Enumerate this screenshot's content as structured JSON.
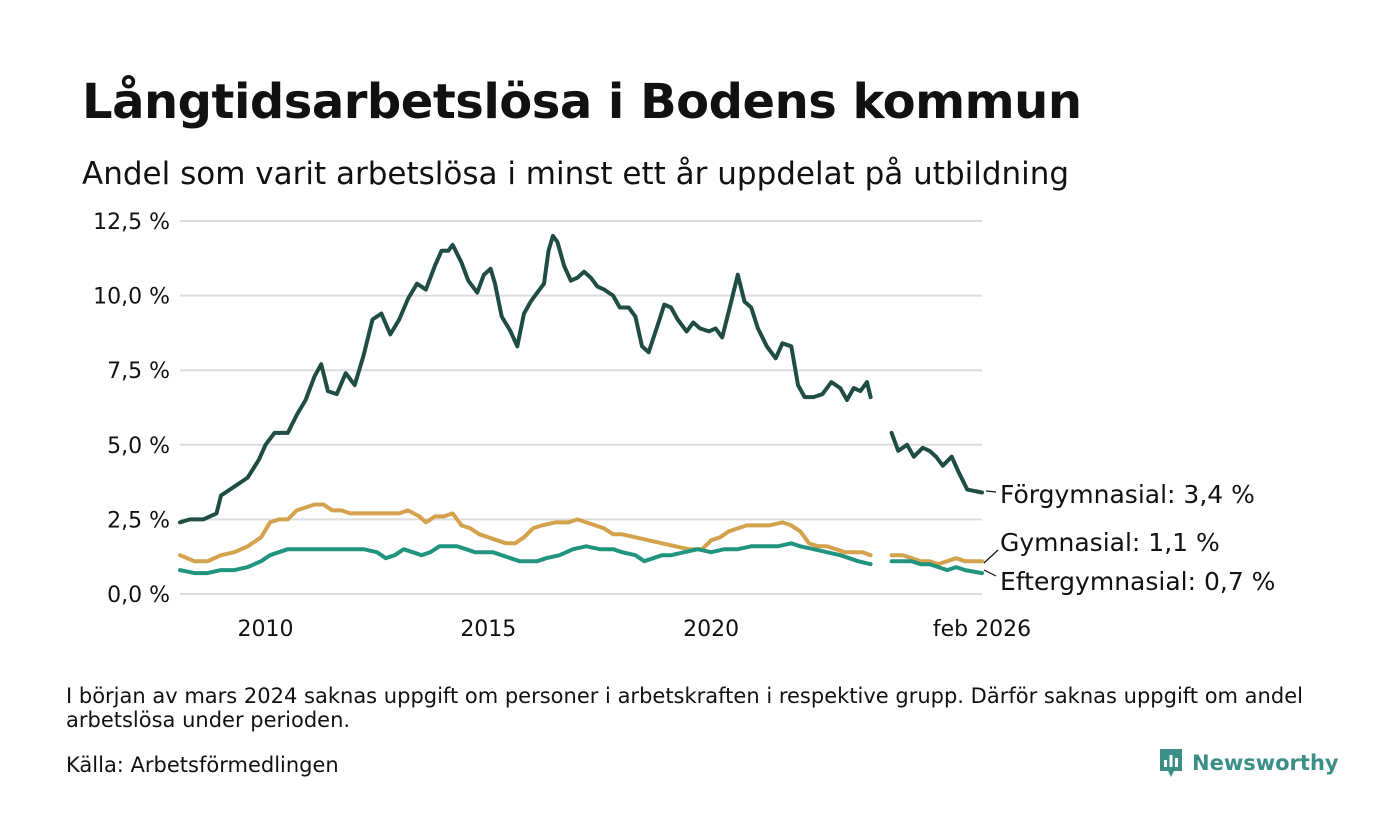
{
  "title": "Långtidsarbetslösa i Bodens kommun",
  "subtitle": "Andel som varit arbetslösa i minst ett år uppdelat på utbildning",
  "note": "I början av mars 2024 saknas uppgift om personer i arbetskraften i respektive grupp. Därför saknas uppgift om andel arbetslösa under perioden.",
  "source": "Källa: Arbetsförmedlingen",
  "brand": "Newsworthy",
  "colors": {
    "forgymnasial": "#1f4d44",
    "gymnasial": "#d4a24c",
    "eftergymnasial": "#21947f",
    "grid": "#dddddd",
    "brand": "#3b8f86"
  },
  "chart_data": {
    "type": "line",
    "title": "Långtidsarbetslösa i Bodens kommun",
    "subtitle": "Andel som varit arbetslösa i minst ett år uppdelat på utbildning",
    "xlabel": "",
    "ylabel": "",
    "ylim": [
      0,
      12.5
    ],
    "xlim": [
      2008.08,
      2026.08
    ],
    "grid": true,
    "y_ticks": [
      {
        "value": 0,
        "label": "0,0 %"
      },
      {
        "value": 2.5,
        "label": "2,5 %"
      },
      {
        "value": 5,
        "label": "5,0 %"
      },
      {
        "value": 7.5,
        "label": "7,5 %"
      },
      {
        "value": 10,
        "label": "10,0 %"
      },
      {
        "value": 12.5,
        "label": "12,5 %"
      }
    ],
    "x_ticks": [
      {
        "value": 2010,
        "label": "2010"
      },
      {
        "value": 2015,
        "label": "2015"
      },
      {
        "value": 2020,
        "label": "2020"
      },
      {
        "value": 2026.08,
        "label": "feb 2026"
      }
    ],
    "gap": [
      2023.65,
      2024.05
    ],
    "series": [
      {
        "name": "Förgymnasial",
        "end_label": "Förgymnasial: 3,4 %",
        "color_key": "forgymnasial",
        "points": [
          [
            2008.08,
            2.4
          ],
          [
            2008.3,
            2.5
          ],
          [
            2008.6,
            2.5
          ],
          [
            2008.9,
            2.7
          ],
          [
            2009.0,
            3.3
          ],
          [
            2009.3,
            3.6
          ],
          [
            2009.6,
            3.9
          ],
          [
            2009.85,
            4.5
          ],
          [
            2010.0,
            5.0
          ],
          [
            2010.2,
            5.4
          ],
          [
            2010.5,
            5.4
          ],
          [
            2010.7,
            6.0
          ],
          [
            2010.9,
            6.5
          ],
          [
            2011.1,
            7.3
          ],
          [
            2011.25,
            7.7
          ],
          [
            2011.4,
            6.8
          ],
          [
            2011.6,
            6.7
          ],
          [
            2011.8,
            7.4
          ],
          [
            2012.0,
            7.0
          ],
          [
            2012.2,
            8.0
          ],
          [
            2012.4,
            9.2
          ],
          [
            2012.6,
            9.4
          ],
          [
            2012.8,
            8.7
          ],
          [
            2013.0,
            9.2
          ],
          [
            2013.2,
            9.9
          ],
          [
            2013.4,
            10.4
          ],
          [
            2013.6,
            10.2
          ],
          [
            2013.8,
            11.0
          ],
          [
            2013.95,
            11.5
          ],
          [
            2014.1,
            11.5
          ],
          [
            2014.2,
            11.7
          ],
          [
            2014.4,
            11.1
          ],
          [
            2014.55,
            10.5
          ],
          [
            2014.75,
            10.1
          ],
          [
            2014.9,
            10.7
          ],
          [
            2015.05,
            10.9
          ],
          [
            2015.15,
            10.4
          ],
          [
            2015.3,
            9.3
          ],
          [
            2015.5,
            8.8
          ],
          [
            2015.65,
            8.3
          ],
          [
            2015.8,
            9.4
          ],
          [
            2015.95,
            9.8
          ],
          [
            2016.1,
            10.1
          ],
          [
            2016.25,
            10.4
          ],
          [
            2016.35,
            11.5
          ],
          [
            2016.45,
            12.0
          ],
          [
            2016.55,
            11.8
          ],
          [
            2016.7,
            11.0
          ],
          [
            2016.85,
            10.5
          ],
          [
            2017.0,
            10.6
          ],
          [
            2017.15,
            10.8
          ],
          [
            2017.3,
            10.6
          ],
          [
            2017.45,
            10.3
          ],
          [
            2017.6,
            10.2
          ],
          [
            2017.8,
            10.0
          ],
          [
            2017.95,
            9.6
          ],
          [
            2018.15,
            9.6
          ],
          [
            2018.3,
            9.3
          ],
          [
            2018.45,
            8.3
          ],
          [
            2018.6,
            8.1
          ],
          [
            2018.8,
            9.0
          ],
          [
            2018.95,
            9.7
          ],
          [
            2019.1,
            9.6
          ],
          [
            2019.25,
            9.2
          ],
          [
            2019.45,
            8.8
          ],
          [
            2019.6,
            9.1
          ],
          [
            2019.75,
            8.9
          ],
          [
            2019.95,
            8.8
          ],
          [
            2020.1,
            8.9
          ],
          [
            2020.25,
            8.6
          ],
          [
            2020.45,
            9.8
          ],
          [
            2020.6,
            10.7
          ],
          [
            2020.75,
            9.8
          ],
          [
            2020.9,
            9.6
          ],
          [
            2021.05,
            8.9
          ],
          [
            2021.25,
            8.3
          ],
          [
            2021.45,
            7.9
          ],
          [
            2021.6,
            8.4
          ],
          [
            2021.8,
            8.3
          ],
          [
            2021.95,
            7.0
          ],
          [
            2022.1,
            6.6
          ],
          [
            2022.3,
            6.6
          ],
          [
            2022.5,
            6.7
          ],
          [
            2022.7,
            7.1
          ],
          [
            2022.9,
            6.9
          ],
          [
            2023.05,
            6.5
          ],
          [
            2023.2,
            6.9
          ],
          [
            2023.35,
            6.8
          ],
          [
            2023.5,
            7.1
          ],
          [
            2023.58,
            6.6
          ],
          [
            2024.05,
            5.4
          ],
          [
            2024.2,
            4.8
          ],
          [
            2024.4,
            5.0
          ],
          [
            2024.55,
            4.6
          ],
          [
            2024.75,
            4.9
          ],
          [
            2024.9,
            4.8
          ],
          [
            2025.05,
            4.6
          ],
          [
            2025.2,
            4.3
          ],
          [
            2025.4,
            4.6
          ],
          [
            2025.55,
            4.1
          ],
          [
            2025.75,
            3.5
          ],
          [
            2026.08,
            3.4
          ]
        ]
      },
      {
        "name": "Gymnasial",
        "end_label": "Gymnasial: 1,1 %",
        "color_key": "gymnasial",
        "points": [
          [
            2008.08,
            1.3
          ],
          [
            2008.4,
            1.1
          ],
          [
            2008.7,
            1.1
          ],
          [
            2009.0,
            1.3
          ],
          [
            2009.3,
            1.4
          ],
          [
            2009.6,
            1.6
          ],
          [
            2009.9,
            1.9
          ],
          [
            2010.1,
            2.4
          ],
          [
            2010.3,
            2.5
          ],
          [
            2010.5,
            2.5
          ],
          [
            2010.7,
            2.8
          ],
          [
            2010.9,
            2.9
          ],
          [
            2011.1,
            3.0
          ],
          [
            2011.3,
            3.0
          ],
          [
            2011.5,
            2.8
          ],
          [
            2011.7,
            2.8
          ],
          [
            2011.9,
            2.7
          ],
          [
            2012.1,
            2.7
          ],
          [
            2012.4,
            2.7
          ],
          [
            2012.7,
            2.7
          ],
          [
            2013.0,
            2.7
          ],
          [
            2013.2,
            2.8
          ],
          [
            2013.45,
            2.6
          ],
          [
            2013.6,
            2.4
          ],
          [
            2013.8,
            2.6
          ],
          [
            2014.0,
            2.6
          ],
          [
            2014.2,
            2.7
          ],
          [
            2014.4,
            2.3
          ],
          [
            2014.6,
            2.2
          ],
          [
            2014.8,
            2.0
          ],
          [
            2015.0,
            1.9
          ],
          [
            2015.2,
            1.8
          ],
          [
            2015.4,
            1.7
          ],
          [
            2015.6,
            1.7
          ],
          [
            2015.8,
            1.9
          ],
          [
            2016.0,
            2.2
          ],
          [
            2016.2,
            2.3
          ],
          [
            2016.5,
            2.4
          ],
          [
            2016.8,
            2.4
          ],
          [
            2017.0,
            2.5
          ],
          [
            2017.2,
            2.4
          ],
          [
            2017.4,
            2.3
          ],
          [
            2017.6,
            2.2
          ],
          [
            2017.8,
            2.0
          ],
          [
            2018.0,
            2.0
          ],
          [
            2018.3,
            1.9
          ],
          [
            2018.6,
            1.8
          ],
          [
            2018.9,
            1.7
          ],
          [
            2019.2,
            1.6
          ],
          [
            2019.5,
            1.5
          ],
          [
            2019.8,
            1.5
          ],
          [
            2020.0,
            1.8
          ],
          [
            2020.2,
            1.9
          ],
          [
            2020.4,
            2.1
          ],
          [
            2020.6,
            2.2
          ],
          [
            2020.8,
            2.3
          ],
          [
            2021.0,
            2.3
          ],
          [
            2021.3,
            2.3
          ],
          [
            2021.6,
            2.4
          ],
          [
            2021.8,
            2.3
          ],
          [
            2022.0,
            2.1
          ],
          [
            2022.2,
            1.7
          ],
          [
            2022.4,
            1.6
          ],
          [
            2022.6,
            1.6
          ],
          [
            2022.8,
            1.5
          ],
          [
            2023.0,
            1.4
          ],
          [
            2023.2,
            1.4
          ],
          [
            2023.4,
            1.4
          ],
          [
            2023.58,
            1.3
          ],
          [
            2024.05,
            1.3
          ],
          [
            2024.3,
            1.3
          ],
          [
            2024.5,
            1.2
          ],
          [
            2024.7,
            1.1
          ],
          [
            2024.9,
            1.1
          ],
          [
            2025.1,
            1.0
          ],
          [
            2025.3,
            1.1
          ],
          [
            2025.5,
            1.2
          ],
          [
            2025.7,
            1.1
          ],
          [
            2026.08,
            1.1
          ]
        ]
      },
      {
        "name": "Eftergymnasial",
        "end_label": "Eftergymnasial: 0,7 %",
        "color_key": "eftergymnasial",
        "points": [
          [
            2008.08,
            0.8
          ],
          [
            2008.4,
            0.7
          ],
          [
            2008.7,
            0.7
          ],
          [
            2009.0,
            0.8
          ],
          [
            2009.3,
            0.8
          ],
          [
            2009.6,
            0.9
          ],
          [
            2009.9,
            1.1
          ],
          [
            2010.1,
            1.3
          ],
          [
            2010.3,
            1.4
          ],
          [
            2010.5,
            1.5
          ],
          [
            2010.8,
            1.5
          ],
          [
            2011.0,
            1.5
          ],
          [
            2011.3,
            1.5
          ],
          [
            2011.6,
            1.5
          ],
          [
            2011.9,
            1.5
          ],
          [
            2012.2,
            1.5
          ],
          [
            2012.5,
            1.4
          ],
          [
            2012.7,
            1.2
          ],
          [
            2012.9,
            1.3
          ],
          [
            2013.1,
            1.5
          ],
          [
            2013.3,
            1.4
          ],
          [
            2013.5,
            1.3
          ],
          [
            2013.7,
            1.4
          ],
          [
            2013.9,
            1.6
          ],
          [
            2014.1,
            1.6
          ],
          [
            2014.3,
            1.6
          ],
          [
            2014.5,
            1.5
          ],
          [
            2014.7,
            1.4
          ],
          [
            2014.9,
            1.4
          ],
          [
            2015.1,
            1.4
          ],
          [
            2015.3,
            1.3
          ],
          [
            2015.5,
            1.2
          ],
          [
            2015.7,
            1.1
          ],
          [
            2015.9,
            1.1
          ],
          [
            2016.1,
            1.1
          ],
          [
            2016.3,
            1.2
          ],
          [
            2016.6,
            1.3
          ],
          [
            2016.9,
            1.5
          ],
          [
            2017.2,
            1.6
          ],
          [
            2017.5,
            1.5
          ],
          [
            2017.8,
            1.5
          ],
          [
            2018.0,
            1.4
          ],
          [
            2018.3,
            1.3
          ],
          [
            2018.5,
            1.1
          ],
          [
            2018.7,
            1.2
          ],
          [
            2018.9,
            1.3
          ],
          [
            2019.1,
            1.3
          ],
          [
            2019.4,
            1.4
          ],
          [
            2019.7,
            1.5
          ],
          [
            2020.0,
            1.4
          ],
          [
            2020.3,
            1.5
          ],
          [
            2020.6,
            1.5
          ],
          [
            2020.9,
            1.6
          ],
          [
            2021.2,
            1.6
          ],
          [
            2021.5,
            1.6
          ],
          [
            2021.8,
            1.7
          ],
          [
            2022.0,
            1.6
          ],
          [
            2022.3,
            1.5
          ],
          [
            2022.6,
            1.4
          ],
          [
            2022.9,
            1.3
          ],
          [
            2023.1,
            1.2
          ],
          [
            2023.3,
            1.1
          ],
          [
            2023.58,
            1.0
          ],
          [
            2024.05,
            1.1
          ],
          [
            2024.3,
            1.1
          ],
          [
            2024.5,
            1.1
          ],
          [
            2024.7,
            1.0
          ],
          [
            2024.9,
            1.0
          ],
          [
            2025.1,
            0.9
          ],
          [
            2025.3,
            0.8
          ],
          [
            2025.5,
            0.9
          ],
          [
            2025.7,
            0.8
          ],
          [
            2026.08,
            0.7
          ]
        ]
      }
    ]
  }
}
